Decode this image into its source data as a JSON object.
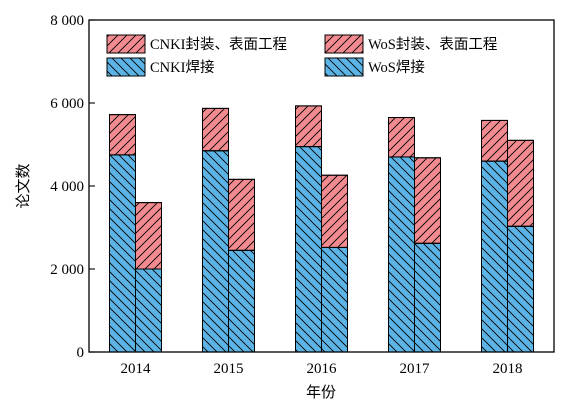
{
  "chart_data": {
    "type": "bar",
    "stacked": true,
    "grouped": true,
    "categories": [
      "2014",
      "2015",
      "2016",
      "2017",
      "2018"
    ],
    "groups": [
      {
        "name": "CNKI",
        "series": [
          {
            "name": "CNKI焊接",
            "values": [
              4750,
              4850,
              4950,
              4700,
              4600
            ],
            "color": "#5bb4e5",
            "hatch": "backslash"
          },
          {
            "name": "CNKI封装、表面工程",
            "values": [
              970,
              1020,
              980,
              950,
              980
            ],
            "color": "#f28b8f",
            "hatch": "slash"
          }
        ]
      },
      {
        "name": "WoS",
        "series": [
          {
            "name": "WoS焊接",
            "values": [
              2000,
              2450,
              2520,
              2620,
              3030
            ],
            "color": "#5bb4e5",
            "hatch": "backslash"
          },
          {
            "name": "WoS封装、表面工程",
            "values": [
              1600,
              1710,
              1740,
              2060,
              2070
            ],
            "color": "#f28b8f",
            "hatch": "slash"
          }
        ]
      }
    ],
    "legend": {
      "placement": "top",
      "entries": [
        "CNKI封装、表面工程",
        "WoS封装、表面工程",
        "CNKI焊接",
        "WoS焊接"
      ]
    },
    "xlabel": "年份",
    "ylabel": "论文数",
    "ylim": [
      0,
      8000
    ],
    "yticks": [
      0,
      2000,
      4000,
      6000,
      8000
    ],
    "ytick_labels": [
      "0",
      "2 000",
      "4 000",
      "6 000",
      "8 000"
    ],
    "grid": false
  }
}
